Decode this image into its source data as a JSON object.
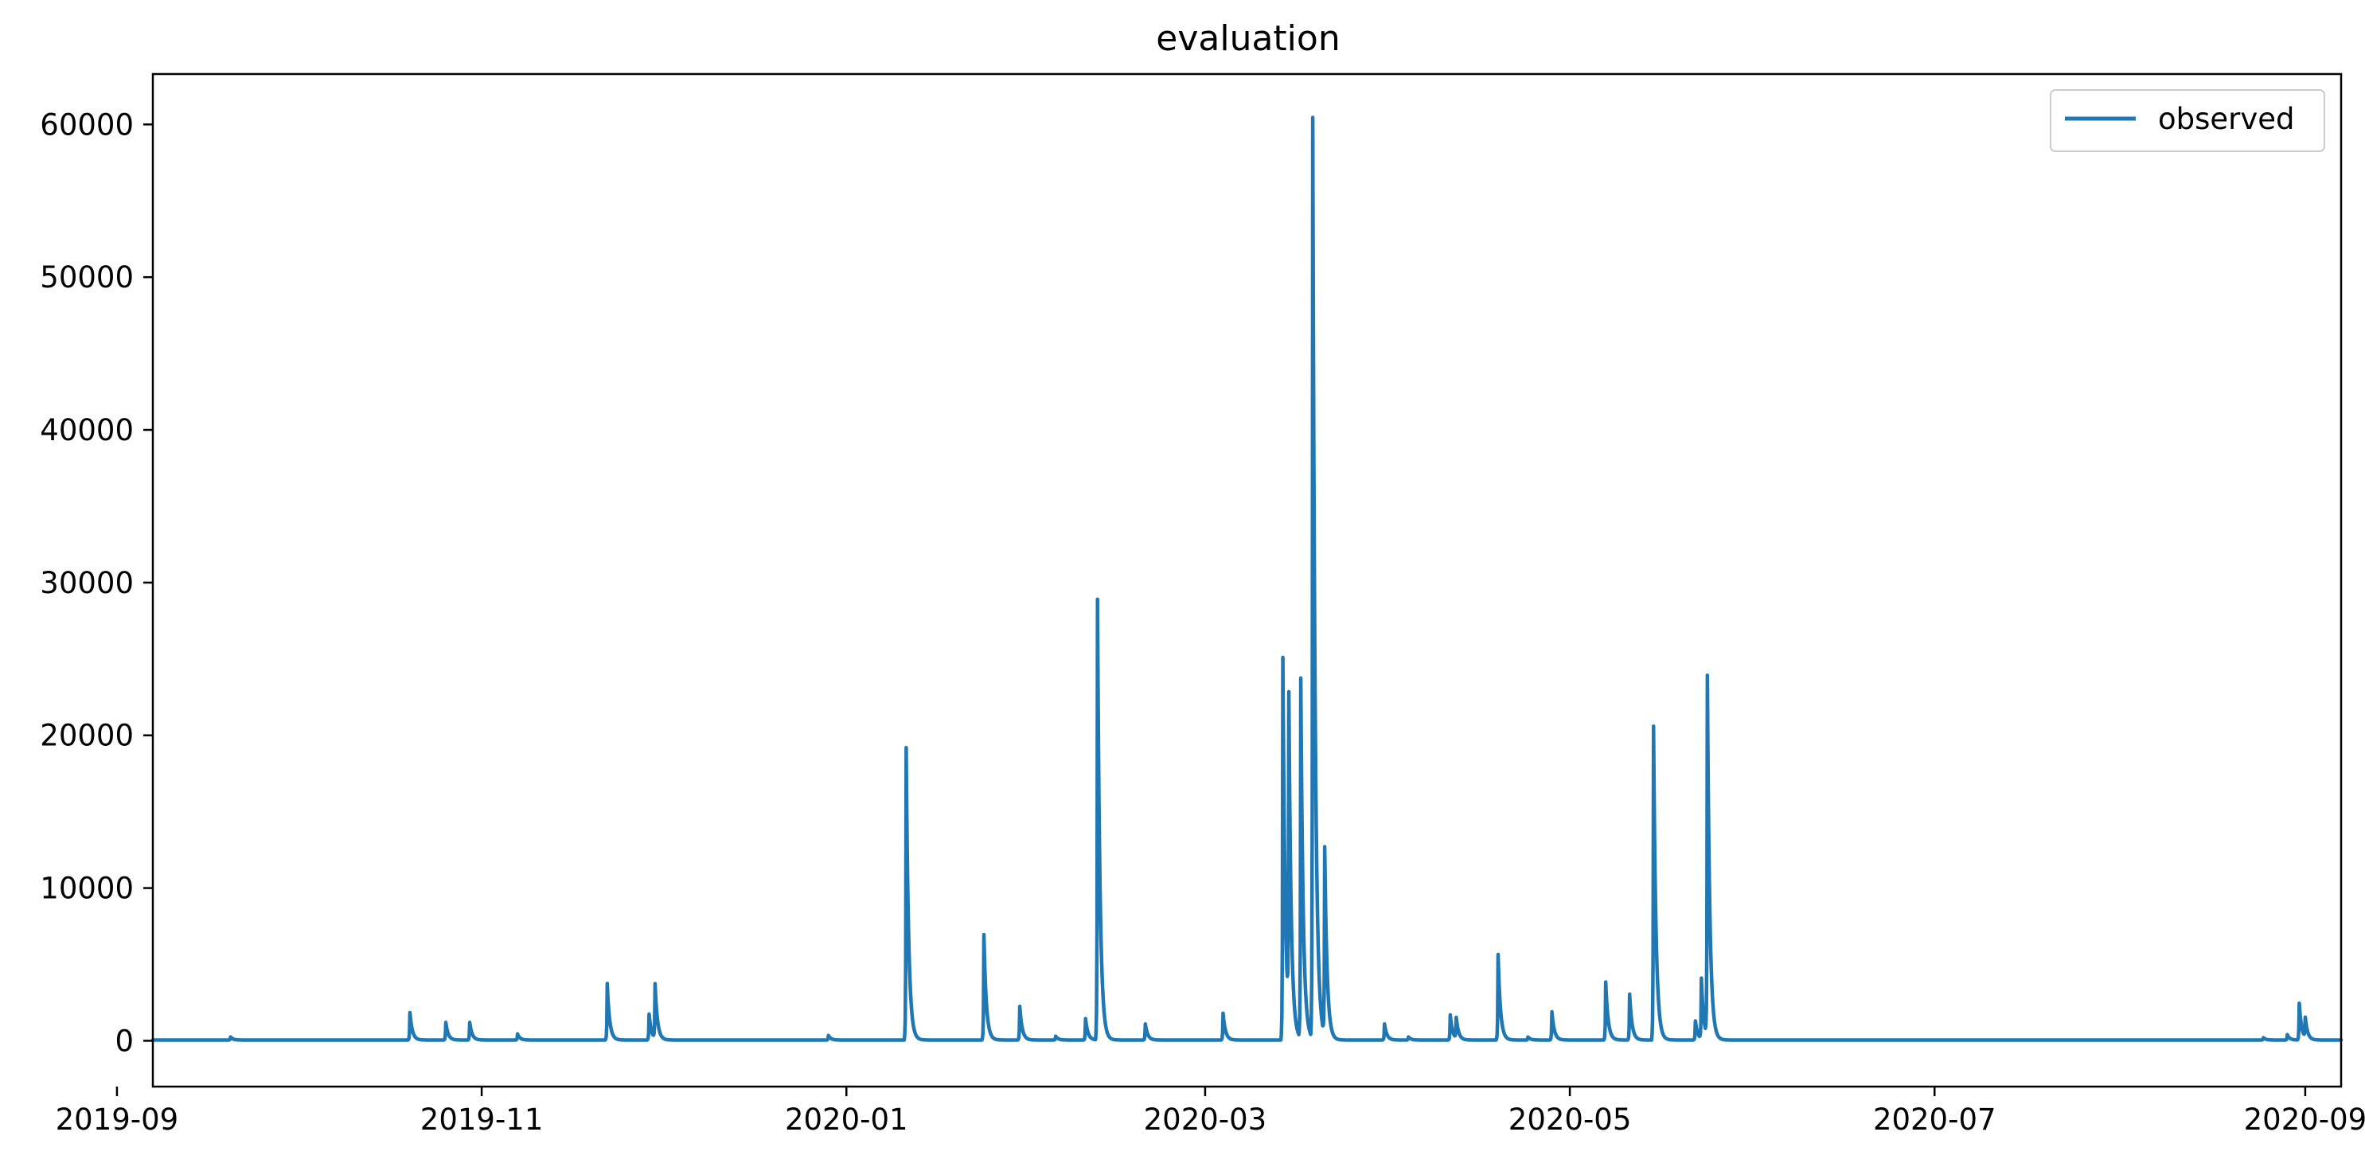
{
  "chart_data": {
    "type": "line",
    "title": "evaluation",
    "xlabel": "",
    "ylabel": "",
    "x_axis_type": "date",
    "xlim": [
      "2019-09-07",
      "2020-09-07"
    ],
    "ylim": [
      -3000,
      63300
    ],
    "x_ticks": [
      "2019-09-01",
      "2019-11-01",
      "2020-01-01",
      "2020-03-01",
      "2020-05-01",
      "2020-07-01",
      "2020-09-01"
    ],
    "x_tick_labels": [
      "2019-09",
      "2019-11",
      "2020-01",
      "2020-03",
      "2020-05",
      "2020-07",
      "2020-09"
    ],
    "y_ticks": [
      0,
      10000,
      20000,
      30000,
      40000,
      50000,
      60000
    ],
    "y_tick_labels": [
      "0",
      "10000",
      "20000",
      "30000",
      "40000",
      "50000",
      "60000"
    ],
    "legend": {
      "position": "top-right",
      "entries": [
        "observed"
      ]
    },
    "grid": false,
    "color": "#1f77b4",
    "series": [
      {
        "name": "observed",
        "baseline": 50,
        "peaks": [
          {
            "date": "2019-09-20",
            "value": 250
          },
          {
            "date": "2019-10-20",
            "value": 1850
          },
          {
            "date": "2019-10-26",
            "value": 1200
          },
          {
            "date": "2019-10-30",
            "value": 1200
          },
          {
            "date": "2019-11-07",
            "value": 450
          },
          {
            "date": "2019-11-22",
            "value": 3750
          },
          {
            "date": "2019-11-29",
            "value": 1750
          },
          {
            "date": "2019-11-30",
            "value": 3600
          },
          {
            "date": "2019-12-29",
            "value": 350
          },
          {
            "date": "2020-01-11",
            "value": 19200
          },
          {
            "date": "2020-01-24",
            "value": 6950
          },
          {
            "date": "2020-01-30",
            "value": 2250
          },
          {
            "date": "2020-02-05",
            "value": 300
          },
          {
            "date": "2020-02-10",
            "value": 1450
          },
          {
            "date": "2020-02-12",
            "value": 28900
          },
          {
            "date": "2020-02-20",
            "value": 1100
          },
          {
            "date": "2020-03-04",
            "value": 1800
          },
          {
            "date": "2020-03-14",
            "value": 25100
          },
          {
            "date": "2020-03-15",
            "value": 20800
          },
          {
            "date": "2020-03-17",
            "value": 23600
          },
          {
            "date": "2020-03-19",
            "value": 60300
          },
          {
            "date": "2020-03-21",
            "value": 12300
          },
          {
            "date": "2020-03-31",
            "value": 1100
          },
          {
            "date": "2020-04-04",
            "value": 250
          },
          {
            "date": "2020-04-11",
            "value": 1700
          },
          {
            "date": "2020-04-12",
            "value": 1400
          },
          {
            "date": "2020-04-19",
            "value": 5650
          },
          {
            "date": "2020-04-24",
            "value": 250
          },
          {
            "date": "2020-04-28",
            "value": 1900
          },
          {
            "date": "2020-05-07",
            "value": 3850
          },
          {
            "date": "2020-05-11",
            "value": 3050
          },
          {
            "date": "2020-05-15",
            "value": 20600
          },
          {
            "date": "2020-05-22",
            "value": 1300
          },
          {
            "date": "2020-05-23",
            "value": 4000
          },
          {
            "date": "2020-05-24",
            "value": 23600
          },
          {
            "date": "2020-08-25",
            "value": 200
          },
          {
            "date": "2020-08-29",
            "value": 400
          },
          {
            "date": "2020-08-31",
            "value": 2450
          },
          {
            "date": "2020-09-01",
            "value": 1350
          }
        ]
      }
    ]
  }
}
